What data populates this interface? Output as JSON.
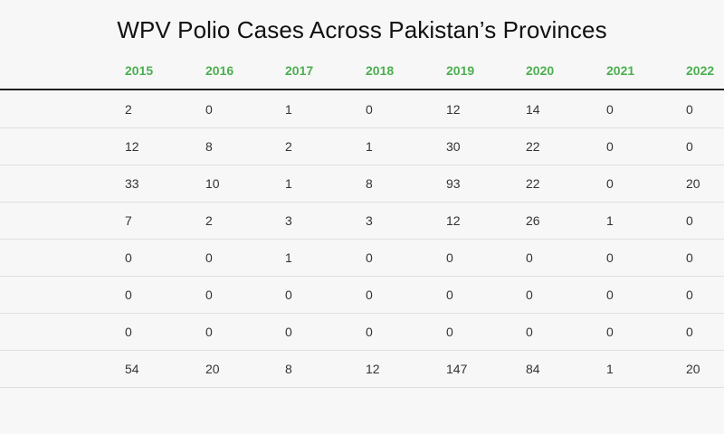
{
  "chart_data": {
    "type": "table",
    "title": "WPV Polio Cases Across Pakistan’s Provinces",
    "columns": [
      "2015",
      "2016",
      "2017",
      "2018",
      "2019",
      "2020",
      "2021",
      "2022"
    ],
    "rows": [
      [
        "2",
        "0",
        "1",
        "0",
        "12",
        "14",
        "0",
        "0"
      ],
      [
        "12",
        "8",
        "2",
        "1",
        "30",
        "22",
        "0",
        "0"
      ],
      [
        "33",
        "10",
        "1",
        "8",
        "93",
        "22",
        "0",
        "20"
      ],
      [
        "7",
        "2",
        "3",
        "3",
        "12",
        "26",
        "1",
        "0"
      ],
      [
        "0",
        "0",
        "1",
        "0",
        "0",
        "0",
        "0",
        "0"
      ],
      [
        "0",
        "0",
        "0",
        "0",
        "0",
        "0",
        "0",
        "0"
      ],
      [
        "0",
        "0",
        "0",
        "0",
        "0",
        "0",
        "0",
        "0"
      ],
      [
        "54",
        "20",
        "8",
        "12",
        "147",
        "84",
        "1",
        "20"
      ]
    ],
    "header_color": "#4caf50"
  }
}
